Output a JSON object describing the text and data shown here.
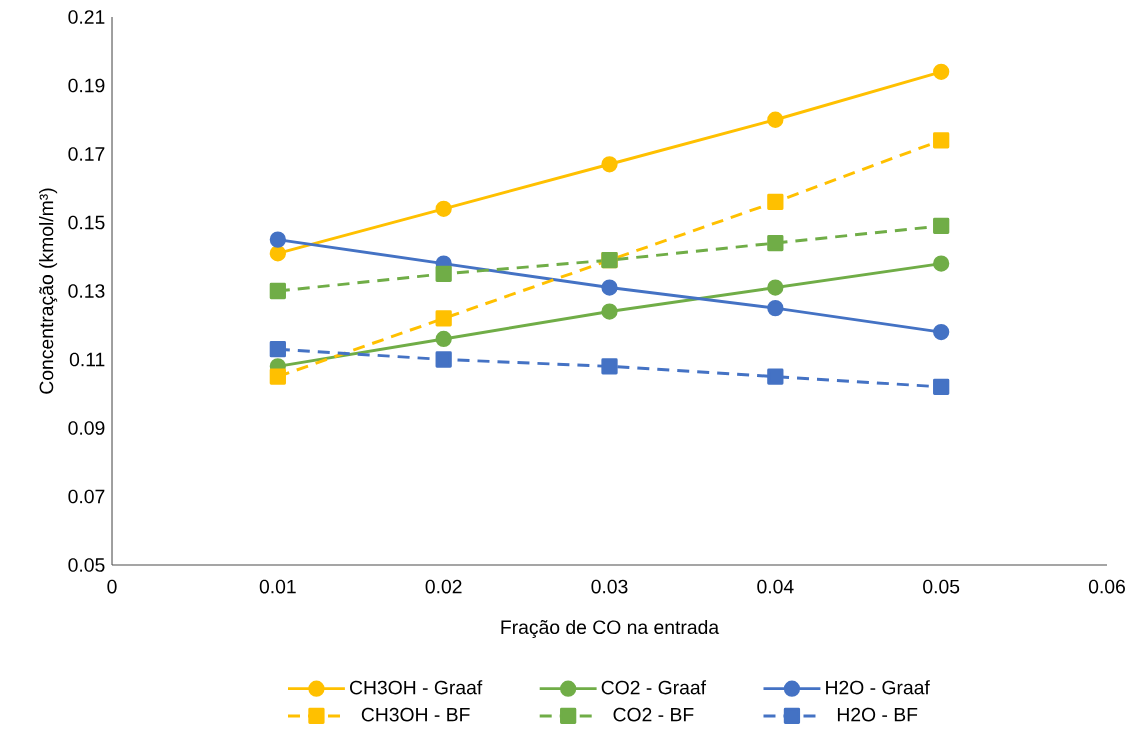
{
  "chart_data": {
    "type": "line",
    "xlabel": "Fração de CO na entrada",
    "ylabel": "Concentração (kmol/m³)",
    "x": [
      0.01,
      0.02,
      0.03,
      0.04,
      0.05
    ],
    "xlim": [
      0,
      0.06
    ],
    "xticks": [
      0,
      0.01,
      0.02,
      0.03,
      0.04,
      0.05,
      0.06
    ],
    "ylim": [
      0.05,
      0.21
    ],
    "yticks": [
      0.05,
      0.07,
      0.09,
      0.11,
      0.13,
      0.15,
      0.17,
      0.19,
      0.21
    ],
    "grid": false,
    "legend": "bottom",
    "series": [
      {
        "name": "CH3OH - Graaf",
        "color": "#ffc000",
        "marker": "circle",
        "line_style": "solid",
        "values": [
          0.141,
          0.154,
          0.167,
          0.18,
          0.194
        ]
      },
      {
        "name": "CO2 - Graaf",
        "color": "#70ad47",
        "marker": "circle",
        "line_style": "solid",
        "values": [
          0.108,
          0.116,
          0.124,
          0.131,
          0.138
        ]
      },
      {
        "name": "H2O - Graaf",
        "color": "#4472c4",
        "marker": "circle",
        "line_style": "solid",
        "values": [
          0.145,
          0.138,
          0.131,
          0.125,
          0.118
        ]
      },
      {
        "name": "CH3OH - BF",
        "color": "#ffc000",
        "marker": "square",
        "line_style": "dashed",
        "values": [
          0.105,
          0.122,
          0.139,
          0.156,
          0.174
        ]
      },
      {
        "name": "CO2 - BF",
        "color": "#70ad47",
        "marker": "square",
        "line_style": "dashed",
        "values": [
          0.13,
          0.135,
          0.139,
          0.144,
          0.149
        ]
      },
      {
        "name": "H2O - BF",
        "color": "#4472c4",
        "marker": "square",
        "line_style": "dashed",
        "values": [
          0.113,
          0.11,
          0.108,
          0.105,
          0.102
        ]
      }
    ]
  }
}
